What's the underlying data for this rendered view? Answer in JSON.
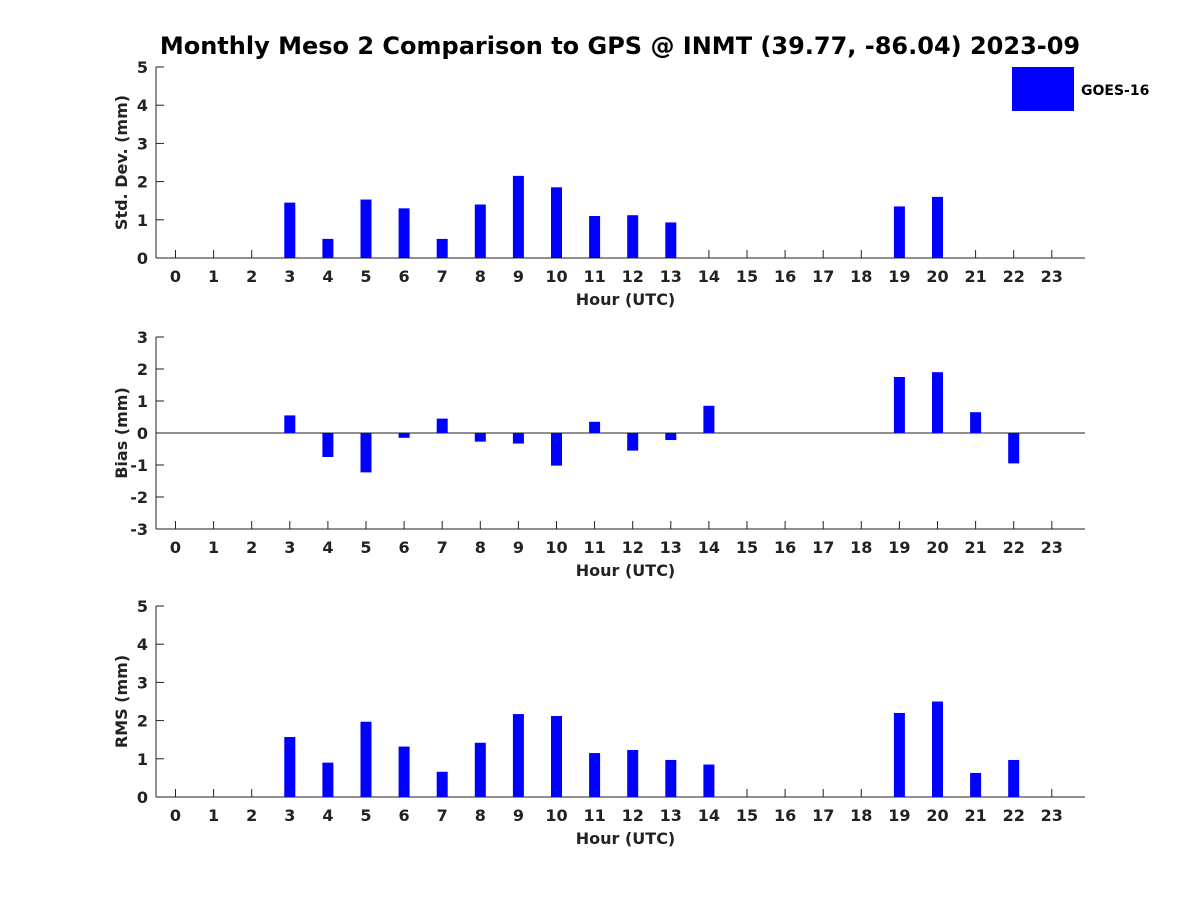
{
  "title": "Monthly Meso 2 Comparison to GPS @ INMT (39.77, -86.04) 2023-09",
  "legend": {
    "label": "GOES-16",
    "color": "#0000ff",
    "placement": "top-right"
  },
  "chart_data": [
    {
      "type": "bar",
      "ylabel": "Std. Dev. (mm)",
      "xlabel": "Hour (UTC)",
      "ylim": [
        0,
        5
      ],
      "yticks": [
        0,
        1,
        2,
        3,
        4,
        5
      ],
      "categories": [
        "0",
        "1",
        "2",
        "3",
        "4",
        "5",
        "6",
        "7",
        "8",
        "9",
        "10",
        "11",
        "12",
        "13",
        "14",
        "15",
        "16",
        "17",
        "18",
        "19",
        "20",
        "21",
        "22",
        "23"
      ],
      "series": [
        {
          "name": "GOES-16",
          "values": [
            null,
            null,
            null,
            1.45,
            0.5,
            1.53,
            1.3,
            0.5,
            1.4,
            2.15,
            1.85,
            1.1,
            1.12,
            0.93,
            null,
            null,
            null,
            null,
            null,
            1.35,
            1.6,
            null,
            null,
            null
          ]
        }
      ]
    },
    {
      "type": "bar",
      "ylabel": "Bias (mm)",
      "xlabel": "Hour (UTC)",
      "ylim": [
        -3,
        3
      ],
      "yticks": [
        -3,
        -2,
        -1,
        0,
        1,
        2,
        3
      ],
      "categories": [
        "0",
        "1",
        "2",
        "3",
        "4",
        "5",
        "6",
        "7",
        "8",
        "9",
        "10",
        "11",
        "12",
        "13",
        "14",
        "15",
        "16",
        "17",
        "18",
        "19",
        "20",
        "21",
        "22",
        "23"
      ],
      "series": [
        {
          "name": "GOES-16",
          "values": [
            null,
            null,
            null,
            0.55,
            -0.75,
            -1.23,
            -0.15,
            0.45,
            -0.27,
            -0.33,
            -1.02,
            0.35,
            -0.55,
            -0.22,
            0.85,
            null,
            null,
            null,
            null,
            1.75,
            1.9,
            0.65,
            -0.95,
            null
          ]
        }
      ]
    },
    {
      "type": "bar",
      "ylabel": "RMS (mm)",
      "xlabel": "Hour (UTC)",
      "ylim": [
        0,
        5
      ],
      "yticks": [
        0,
        1,
        2,
        3,
        4,
        5
      ],
      "categories": [
        "0",
        "1",
        "2",
        "3",
        "4",
        "5",
        "6",
        "7",
        "8",
        "9",
        "10",
        "11",
        "12",
        "13",
        "14",
        "15",
        "16",
        "17",
        "18",
        "19",
        "20",
        "21",
        "22",
        "23"
      ],
      "series": [
        {
          "name": "GOES-16",
          "values": [
            null,
            null,
            null,
            1.57,
            0.9,
            1.97,
            1.32,
            0.66,
            1.42,
            2.17,
            2.12,
            1.15,
            1.23,
            0.97,
            0.85,
            null,
            null,
            null,
            null,
            2.2,
            2.5,
            0.63,
            0.97,
            null
          ]
        }
      ]
    }
  ]
}
